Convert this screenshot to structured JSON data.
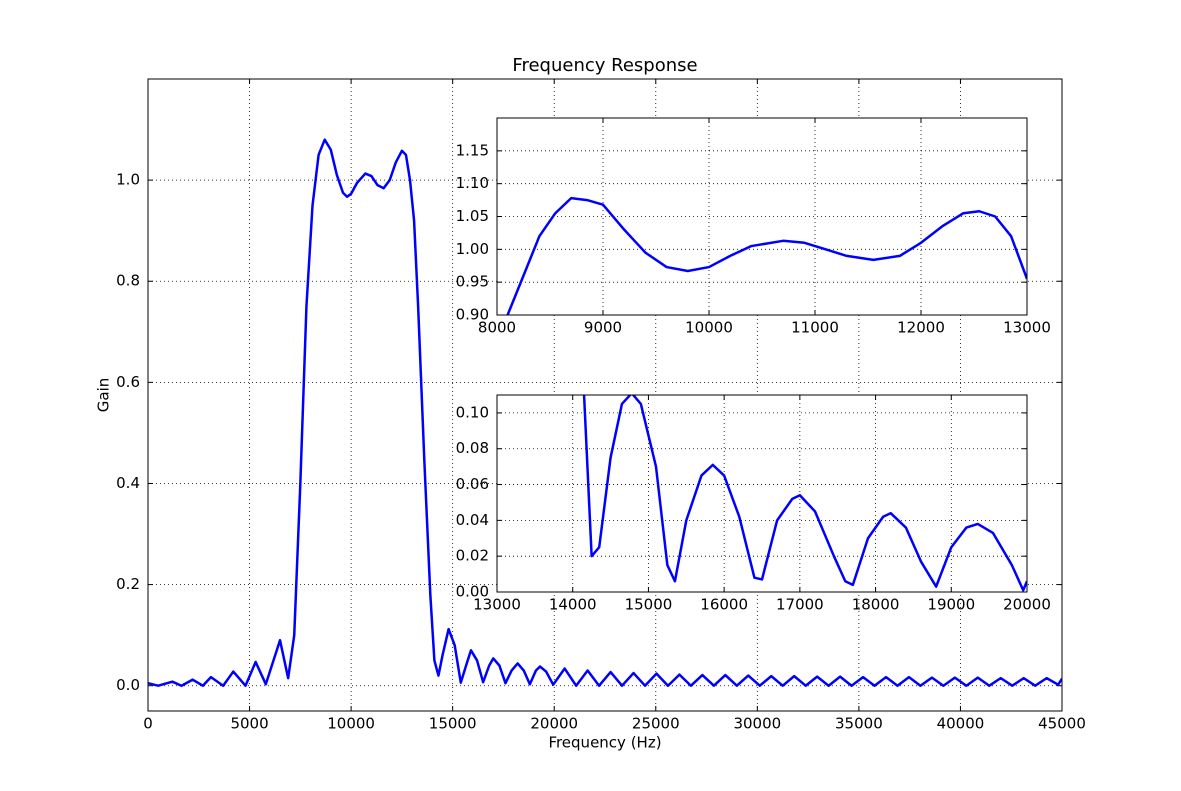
{
  "chart_data": [
    {
      "type": "line",
      "title": "Frequency Response",
      "x_label": "Frequency (Hz)",
      "y_label": "Gain",
      "color": "#0000ff",
      "grid": true,
      "xlim": [
        0,
        45000
      ],
      "ylim": [
        -0.05,
        1.2
      ],
      "xticks": [
        0,
        5000,
        10000,
        15000,
        20000,
        25000,
        30000,
        35000,
        40000,
        45000
      ],
      "yticks": [
        {
          "value": 0,
          "label": "0.0"
        },
        0.2,
        0.4,
        0.6,
        0.8,
        {
          "value": 1,
          "label": "1.0"
        }
      ],
      "x": [
        0,
        500,
        1200,
        1650,
        2200,
        2700,
        3100,
        3700,
        4200,
        4800,
        5300,
        5800,
        6500,
        6900,
        7200,
        7500,
        7800,
        8100,
        8400,
        8700,
        9000,
        9300,
        9600,
        9800,
        10000,
        10300,
        10700,
        11000,
        11300,
        11600,
        11900,
        12200,
        12500,
        12700,
        12900,
        13100,
        13300,
        13600,
        13900,
        14100,
        14300,
        14500,
        14800,
        15100,
        15400,
        15700,
        15900,
        16200,
        16500,
        16800,
        17000,
        17300,
        17600,
        17900,
        18200,
        18500,
        18800,
        19100,
        19300,
        19600,
        19950,
        20515,
        21080,
        21645,
        22210,
        22775,
        23340,
        23905,
        24470,
        25035,
        25600,
        26165,
        26730,
        27295,
        27860,
        28425,
        28990,
        29555,
        30120,
        30685,
        31250,
        31815,
        32380,
        32945,
        33510,
        34075,
        34640,
        35205,
        35770,
        36335,
        36900,
        37465,
        38030,
        38595,
        39160,
        39725,
        40290,
        40855,
        41420,
        41985,
        42550,
        43115,
        43680,
        44245,
        44810,
        45000
      ],
      "values": [
        0.005,
        0.0,
        0.008,
        0.0,
        0.012,
        0.0,
        0.017,
        0.0,
        0.028,
        0.0,
        0.047,
        0.003,
        0.09,
        0.015,
        0.1,
        0.4,
        0.75,
        0.95,
        1.05,
        1.08,
        1.06,
        1.01,
        0.975,
        0.967,
        0.973,
        0.995,
        1.013,
        1.008,
        0.99,
        0.984,
        1.0,
        1.035,
        1.058,
        1.05,
        1.0,
        0.92,
        0.75,
        0.45,
        0.18,
        0.05,
        0.02,
        0.06,
        0.112,
        0.08,
        0.006,
        0.045,
        0.07,
        0.05,
        0.007,
        0.04,
        0.054,
        0.04,
        0.005,
        0.03,
        0.044,
        0.03,
        0.003,
        0.03,
        0.038,
        0.028,
        0.002,
        0.034,
        0.0,
        0.03,
        0.0,
        0.027,
        0.0,
        0.025,
        0.0,
        0.024,
        0.0,
        0.022,
        0.0,
        0.021,
        0.0,
        0.021,
        0.0,
        0.02,
        0.0,
        0.019,
        0.0,
        0.019,
        0.0,
        0.018,
        0.0,
        0.018,
        0.0,
        0.017,
        0.0,
        0.017,
        0.0,
        0.017,
        0.0,
        0.016,
        0.0,
        0.016,
        0.0,
        0.016,
        0.0,
        0.015,
        0.0,
        0.015,
        0.0,
        0.015,
        0.002,
        0.014
      ]
    },
    {
      "type": "line",
      "color": "#0000ff",
      "grid": true,
      "xlim": [
        8000,
        13000
      ],
      "ylim": [
        0.9,
        1.2
      ],
      "xticks": [
        8000,
        9000,
        10000,
        11000,
        12000,
        13000
      ],
      "yticks": [
        {
          "value": 0.9,
          "label": "0.90"
        },
        0.95,
        {
          "value": 1,
          "label": "1.00"
        },
        1.05,
        {
          "value": 1.1,
          "label": "1.10"
        },
        1.15
      ],
      "x": [
        8100,
        8250,
        8400,
        8550,
        8700,
        8850,
        9000,
        9200,
        9400,
        9600,
        9800,
        10000,
        10200,
        10400,
        10700,
        10900,
        11100,
        11300,
        11550,
        11800,
        12000,
        12200,
        12400,
        12550,
        12700,
        12850,
        13000
      ],
      "values": [
        0.9,
        0.96,
        1.02,
        1.055,
        1.078,
        1.075,
        1.068,
        1.03,
        0.995,
        0.973,
        0.967,
        0.973,
        0.99,
        1.005,
        1.013,
        1.01,
        1.0,
        0.99,
        0.984,
        0.99,
        1.01,
        1.035,
        1.055,
        1.058,
        1.05,
        1.02,
        0.955
      ]
    },
    {
      "type": "line",
      "color": "#0000ff",
      "grid": true,
      "xlim": [
        13000,
        20000
      ],
      "ylim": [
        0,
        0.11
      ],
      "xticks": [
        13000,
        14000,
        15000,
        16000,
        17000,
        18000,
        19000,
        20000
      ],
      "yticks": [
        {
          "value": 0,
          "label": "0.00"
        },
        0.02,
        0.04,
        0.06,
        0.08,
        {
          "value": 0.1,
          "label": "0.10"
        }
      ],
      "x": [
        14050,
        14250,
        14350,
        14500,
        14650,
        14780,
        14900,
        15100,
        15250,
        15350,
        15500,
        15700,
        15850,
        16000,
        16200,
        16400,
        16500,
        16700,
        16900,
        17000,
        17200,
        17450,
        17600,
        17700,
        17900,
        18100,
        18200,
        18400,
        18600,
        18800,
        19000,
        19200,
        19350,
        19550,
        19800,
        19950,
        20000
      ],
      "values": [
        0.2,
        0.02,
        0.025,
        0.075,
        0.105,
        0.111,
        0.105,
        0.07,
        0.015,
        0.006,
        0.04,
        0.065,
        0.071,
        0.065,
        0.042,
        0.008,
        0.007,
        0.04,
        0.052,
        0.054,
        0.045,
        0.02,
        0.006,
        0.004,
        0.03,
        0.042,
        0.044,
        0.036,
        0.017,
        0.003,
        0.025,
        0.036,
        0.038,
        0.033,
        0.015,
        0.001,
        0.006
      ]
    }
  ]
}
